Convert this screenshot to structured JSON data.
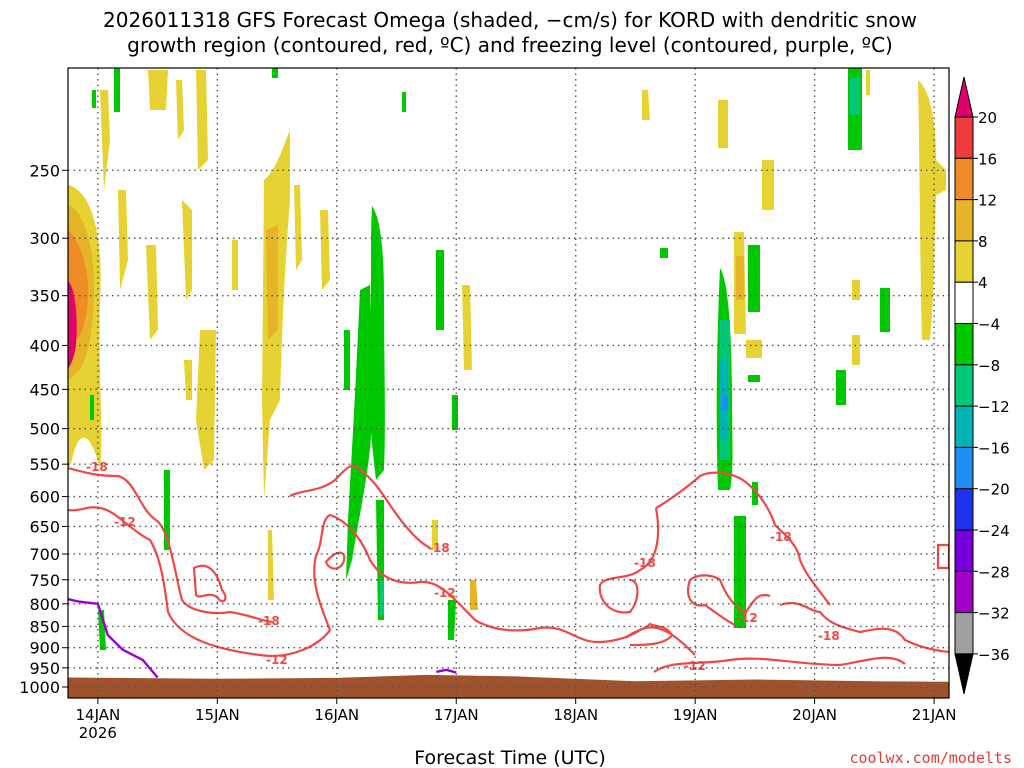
{
  "chart_data": {
    "type": "heatmap",
    "title_line1": "2026011318 GFS Forecast Omega (shaded, −cm/s) for KORD with dendritic snow",
    "title_line2": "growth region (contoured, red, ºC) and freezing level (contoured, purple, ºC)",
    "xlabel": "Forecast Time (UTC)",
    "ylabel": "",
    "credit": "coolwx.com/modelts",
    "x_axis": {
      "type": "time",
      "range": [
        "2026-01-13T18:00",
        "2026-01-21T03:00"
      ],
      "ticks": [
        {
          "label": "14JAN",
          "sub": "2026",
          "value": "2026-01-14T00:00"
        },
        {
          "label": "15JAN",
          "value": "2026-01-15T00:00"
        },
        {
          "label": "16JAN",
          "value": "2026-01-16T00:00"
        },
        {
          "label": "17JAN",
          "value": "2026-01-17T00:00"
        },
        {
          "label": "18JAN",
          "value": "2026-01-18T00:00"
        },
        {
          "label": "19JAN",
          "value": "2026-01-19T00:00"
        },
        {
          "label": "20JAN",
          "value": "2026-01-20T00:00"
        },
        {
          "label": "21JAN",
          "value": "2026-01-21T00:00"
        }
      ]
    },
    "y_axis": {
      "type": "log-pressure",
      "unit": "hPa",
      "inverted": true,
      "range": [
        1030,
        190
      ],
      "ticks": [
        250,
        300,
        350,
        400,
        450,
        500,
        550,
        600,
        650,
        700,
        750,
        800,
        850,
        900,
        950,
        1000
      ],
      "grid": true
    },
    "colorbar": {
      "levels": [
        20,
        16,
        12,
        8,
        4,
        -4,
        -8,
        -12,
        -16,
        -20,
        -24,
        -28,
        -32,
        -36
      ],
      "colors": [
        "#e0006a",
        "#f03c3c",
        "#f08c28",
        "#e6b428",
        "#e6d232",
        "#ffffff",
        "#00c800",
        "#00c878",
        "#00b4b4",
        "#1e8cf0",
        "#1e32f0",
        "#7800dc",
        "#a000c8",
        "#a0a0a0",
        "#000000"
      ]
    },
    "omega_features": [
      {
        "t": "2026-01-13T19:00",
        "p_top": 290,
        "p_bottom": 450,
        "value": 14
      },
      {
        "t": "2026-01-13T19:00",
        "p_top": 370,
        "p_bottom": 420,
        "value": 20
      },
      {
        "t": "2026-01-13T22:00",
        "p_top": 300,
        "p_bottom": 430,
        "value": 10
      },
      {
        "t": "2026-01-15T14:00",
        "p_top": 280,
        "p_bottom": 400,
        "value": 10
      },
      {
        "t": "2026-01-16T09:00",
        "p_top": 310,
        "p_bottom": 760,
        "value": -8
      },
      {
        "t": "2026-01-16T04:00",
        "p_top": 430,
        "p_bottom": 520,
        "value": -6
      },
      {
        "t": "2026-01-16T13:00",
        "p_top": 560,
        "p_bottom": 760,
        "value": -8
      },
      {
        "t": "2026-01-19T09:00",
        "p_top": 360,
        "p_bottom": 600,
        "value": -10
      },
      {
        "t": "2026-01-19T09:00",
        "p_top": 470,
        "p_bottom": 520,
        "value": -16
      },
      {
        "t": "2026-01-19T13:00",
        "p_top": 330,
        "p_bottom": 390,
        "value": 10
      },
      {
        "t": "2026-01-19T12:00",
        "p_top": 660,
        "p_bottom": 870,
        "value": -6
      },
      {
        "t": "2026-01-20T10:00",
        "p_top": 210,
        "p_bottom": 250,
        "value": -10
      },
      {
        "t": "2026-01-21T00:00",
        "p_top": 260,
        "p_bottom": 410,
        "value": 5
      }
    ],
    "dgz_contours": [
      {
        "label": "-18",
        "level": -18
      },
      {
        "label": "-12",
        "level": -12
      }
    ],
    "freezing_level": [
      {
        "t": "2026-01-13T18:00",
        "p": 790
      },
      {
        "t": "2026-01-13T20:00",
        "p": 795
      },
      {
        "t": "2026-01-14T00:00",
        "p": 800
      },
      {
        "t": "2026-01-14T02:00",
        "p": 870
      },
      {
        "t": "2026-01-14T05:00",
        "p": 905
      },
      {
        "t": "2026-01-14T09:00",
        "p": 930
      },
      {
        "t": "2026-01-14T12:00",
        "p": 975
      },
      {
        "t": "2026-01-16T20:00",
        "p": 960
      },
      {
        "t": "2026-01-16T22:00",
        "p": 955
      },
      {
        "t": "2026-01-17T00:00",
        "p": 962
      }
    ],
    "surface_pressure": [
      {
        "t": "2026-01-13T18:00",
        "p": 975
      },
      {
        "t": "2026-01-15T00:00",
        "p": 978
      },
      {
        "t": "2026-01-16T00:00",
        "p": 976
      },
      {
        "t": "2026-01-16T18:00",
        "p": 968
      },
      {
        "t": "2026-01-17T12:00",
        "p": 972
      },
      {
        "t": "2026-01-18T12:00",
        "p": 985
      },
      {
        "t": "2026-01-19T12:00",
        "p": 980
      },
      {
        "t": "2026-01-20T12:00",
        "p": 985
      },
      {
        "t": "2026-01-21T03:00",
        "p": 986
      }
    ],
    "colors": {
      "dgz_contour": "#f04848",
      "freezing_level": "#9a00cc",
      "ground": "#a0522d",
      "grid": "#555555"
    }
  }
}
